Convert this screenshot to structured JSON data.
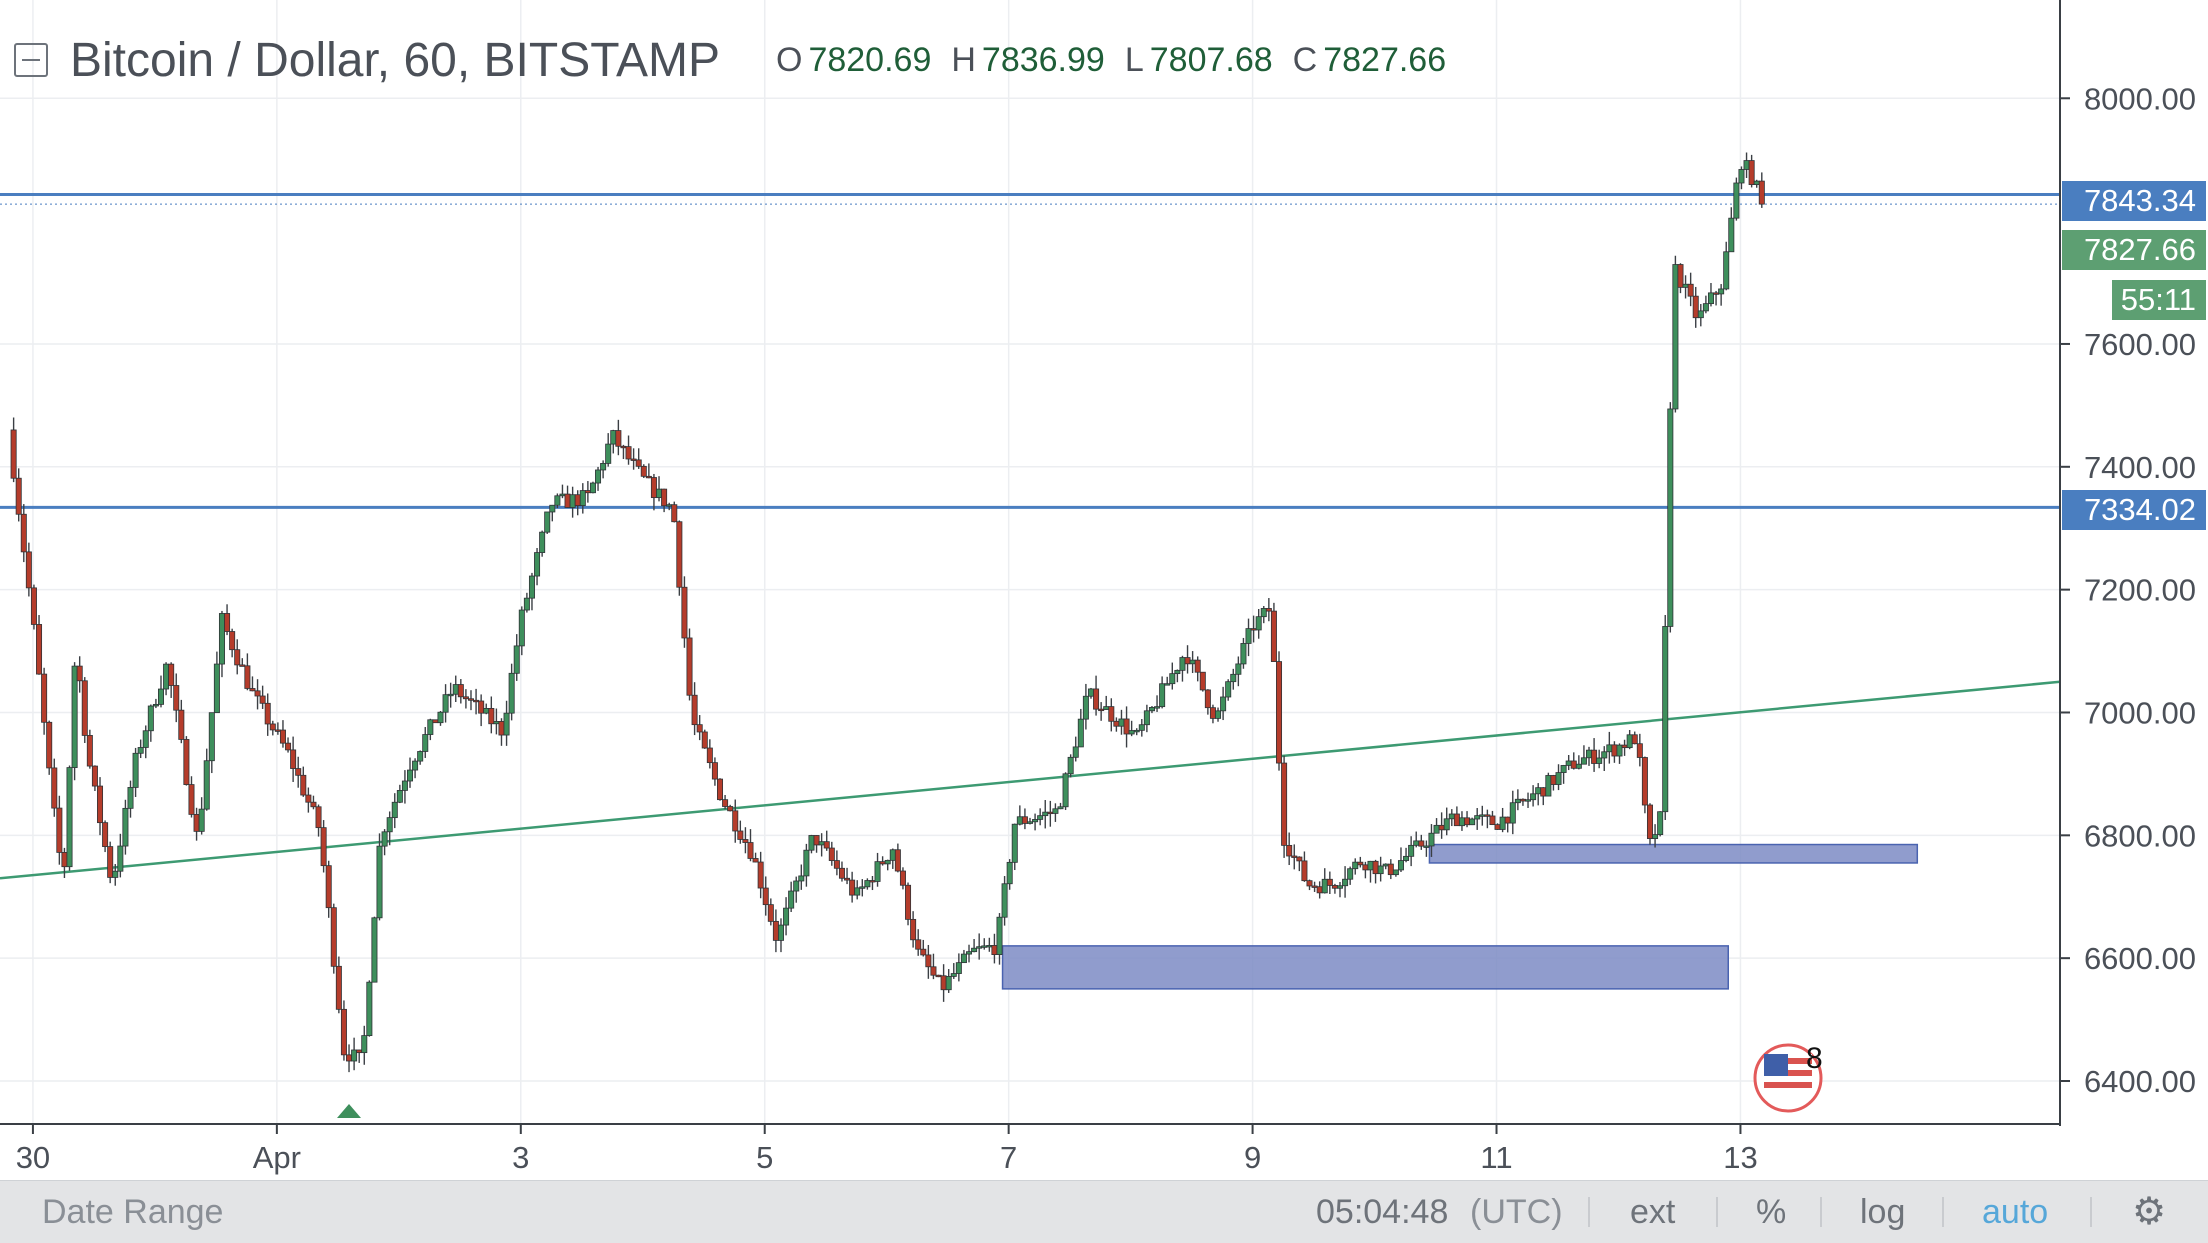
{
  "legend": {
    "title": "Bitcoin / Dollar, 60, BITSTAMP",
    "open_key": "O",
    "open": "7820.69",
    "high_key": "H",
    "high": "7836.99",
    "low_key": "L",
    "low": "7807.68",
    "close_key": "C",
    "close": "7827.66"
  },
  "price_tags": {
    "resistance": "7843.34",
    "last": "7827.66",
    "countdown": "55:11",
    "support": "7334.02"
  },
  "colors": {
    "up": "#3e8f5c",
    "down": "#b53c2b",
    "hline": "#4a7ec0",
    "trendline": "#3d9a72",
    "zone_fill": "#7c8bc4",
    "last_tag": "#5d9f72"
  },
  "bottom_bar": {
    "date_range": "Date Range",
    "clock": "05:04:48",
    "timezone": "(UTC)",
    "ext": "ext",
    "percent": "%",
    "log": "log",
    "auto": "auto",
    "settings_icon": "gear-icon"
  },
  "flag_badge": {
    "icon": "us-flag-icon",
    "count": "8"
  },
  "chart_data": {
    "type": "candlestick",
    "title": "Bitcoin / Dollar, 60, BITSTAMP",
    "timeframe_minutes": 60,
    "ylim": [
      6330,
      8160
    ],
    "y_ticks": [
      6400,
      6600,
      6800,
      7000,
      7200,
      7400,
      7600,
      8000
    ],
    "y_tick_labels": [
      "6400.00",
      "6600.00",
      "6800.00",
      "7000.00",
      "7200.00",
      "7400.00",
      "7600.00",
      "8000.00"
    ],
    "x_ticks": [
      {
        "label": "30",
        "day": 0.2
      },
      {
        "label": "Apr",
        "day": 2.2
      },
      {
        "label": "3",
        "day": 4.2
      },
      {
        "label": "5",
        "day": 6.2
      },
      {
        "label": "7",
        "day": 8.2
      },
      {
        "label": "9",
        "day": 10.2
      },
      {
        "label": "11",
        "day": 12.2
      },
      {
        "label": "13",
        "day": 14.2
      }
    ],
    "xlim_days": [
      -0.07,
      16.82
    ],
    "path_points": [
      [
        0.0,
        7460
      ],
      [
        0.2,
        7150
      ],
      [
        0.35,
        6870
      ],
      [
        0.45,
        6720
      ],
      [
        0.55,
        7110
      ],
      [
        0.65,
        6930
      ],
      [
        0.85,
        6720
      ],
      [
        1.05,
        6930
      ],
      [
        1.3,
        7080
      ],
      [
        1.55,
        6790
      ],
      [
        1.75,
        7150
      ],
      [
        2.0,
        7030
      ],
      [
        2.3,
        6930
      ],
      [
        2.55,
        6810
      ],
      [
        2.75,
        6450
      ],
      [
        2.9,
        6430
      ],
      [
        3.05,
        6800
      ],
      [
        3.3,
        6920
      ],
      [
        3.65,
        7040
      ],
      [
        4.05,
        6970
      ],
      [
        4.2,
        7150
      ],
      [
        4.45,
        7340
      ],
      [
        4.75,
        7350
      ],
      [
        4.95,
        7450
      ],
      [
        5.2,
        7380
      ],
      [
        5.45,
        7330
      ],
      [
        5.6,
        6990
      ],
      [
        5.85,
        6860
      ],
      [
        6.1,
        6770
      ],
      [
        6.3,
        6630
      ],
      [
        6.6,
        6800
      ],
      [
        6.95,
        6700
      ],
      [
        7.25,
        6780
      ],
      [
        7.45,
        6610
      ],
      [
        7.65,
        6550
      ],
      [
        7.9,
        6610
      ],
      [
        8.1,
        6620
      ],
      [
        8.25,
        6820
      ],
      [
        8.6,
        6840
      ],
      [
        8.85,
        7030
      ],
      [
        9.25,
        6960
      ],
      [
        9.65,
        7100
      ],
      [
        9.9,
        6990
      ],
      [
        10.2,
        7140
      ],
      [
        10.35,
        7170
      ],
      [
        10.45,
        6800
      ],
      [
        10.65,
        6720
      ],
      [
        10.85,
        6720
      ],
      [
        11.1,
        6760
      ],
      [
        11.3,
        6740
      ],
      [
        11.55,
        6780
      ],
      [
        11.85,
        6830
      ],
      [
        12.2,
        6820
      ],
      [
        12.6,
        6880
      ],
      [
        12.85,
        6920
      ],
      [
        13.15,
        6940
      ],
      [
        13.35,
        6960
      ],
      [
        13.45,
        6780
      ],
      [
        13.55,
        6830
      ],
      [
        13.65,
        7730
      ],
      [
        13.85,
        7640
      ],
      [
        14.05,
        7700
      ],
      [
        14.2,
        7900
      ],
      [
        14.3,
        7870
      ],
      [
        14.38,
        7827.66
      ]
    ],
    "overlays": {
      "horizontal_lines": [
        7843.34,
        7334.02
      ],
      "trendline": {
        "from": {
          "day": -0.07,
          "price": 6730
        },
        "to": {
          "day": 16.82,
          "price": 7050
        }
      },
      "zones": [
        {
          "day_from": 8.15,
          "day_to": 14.1,
          "price_from": 6550,
          "price_to": 6620
        },
        {
          "day_from": 11.65,
          "day_to": 15.65,
          "price_from": 6755,
          "price_to": 6785
        }
      ]
    }
  }
}
